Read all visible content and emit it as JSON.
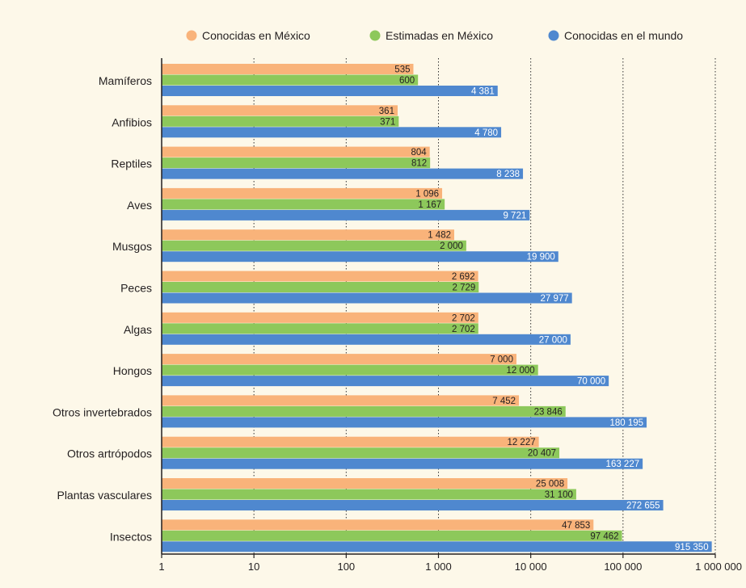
{
  "chart_data": {
    "type": "bar",
    "orientation": "horizontal",
    "x_scale": "log",
    "xlim": [
      1,
      1000000
    ],
    "x_ticks": [
      1,
      10,
      100,
      1000,
      10000,
      100000,
      1000000
    ],
    "x_tick_labels": [
      "1",
      "10",
      "100",
      "1 000",
      "10 000",
      "100 000",
      "1 000 000"
    ],
    "grid": "vertical dotted",
    "legend_position": "top",
    "categories": [
      "Mamíferos",
      "Anfibios",
      "Reptiles",
      "Aves",
      "Musgos",
      "Peces",
      "Algas",
      "Hongos",
      "Otros invertebrados",
      "Otros artrópodos",
      "Plantas vasculares",
      "Insectos"
    ],
    "series": [
      {
        "name": "Conocidas en México",
        "color": "#f9b37a",
        "values": [
          535,
          361,
          804,
          1096,
          1482,
          2692,
          2702,
          7000,
          7452,
          12227,
          25008,
          47853
        ],
        "labels": [
          "535",
          "361",
          "804",
          "1 096",
          "1 482",
          "2 692",
          "2 702",
          "7 000",
          "7 452",
          "12 227",
          "25 008",
          "47 853"
        ]
      },
      {
        "name": "Estimadas en México",
        "color": "#8dc85b",
        "values": [
          600,
          371,
          812,
          1167,
          2000,
          2729,
          2702,
          12000,
          23846,
          20407,
          31100,
          97462
        ],
        "labels": [
          "600",
          "371",
          "812",
          "1 167",
          "2 000",
          "2 729",
          "2 702",
          "12 000",
          "23 846",
          "20 407",
          "31 100",
          "97 462"
        ]
      },
      {
        "name": "Conocidas en el mundo",
        "color": "#4f88cf",
        "values": [
          4381,
          4780,
          8238,
          9721,
          19900,
          27977,
          27000,
          70000,
          180195,
          163227,
          272655,
          915350
        ],
        "labels": [
          "4 381",
          "4 780",
          "8 238",
          "9 721",
          "19 900",
          "27 977",
          "27 000",
          "70 000",
          "180 195",
          "163 227",
          "272 655",
          "915 350"
        ]
      }
    ]
  }
}
